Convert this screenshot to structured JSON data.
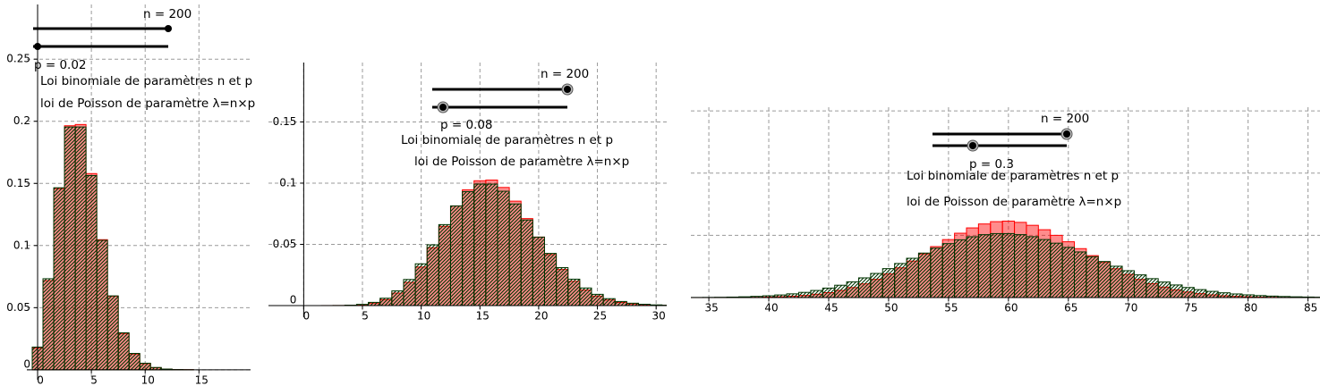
{
  "chart_data": [
    {
      "type": "bar",
      "sliders": [
        {
          "label": "n = 200"
        },
        {
          "label": "p = 0.02"
        }
      ],
      "x": [
        0,
        1,
        2,
        3,
        4,
        5,
        6,
        7,
        8,
        9,
        10,
        11,
        12,
        13,
        14,
        15,
        16,
        17,
        18
      ],
      "series": [
        {
          "name": "Loi binomiale de paramètres n et p",
          "color": "#ff0000",
          "values": [
            0.0176,
            0.0718,
            0.1458,
            0.1964,
            0.1974,
            0.1579,
            0.1047,
            0.0592,
            0.0292,
            0.0127,
            0.005,
            0.0017,
            0.0006,
            0.0002,
            0.0001,
            0,
            0,
            0,
            0
          ]
        },
        {
          "name": "loi de Poisson de paramètre λ=n×p",
          "color": "#003300",
          "values": [
            0.0183,
            0.0733,
            0.1465,
            0.1954,
            0.1954,
            0.1563,
            0.1042,
            0.0595,
            0.0298,
            0.0132,
            0.0053,
            0.0019,
            0.0006,
            0.0002,
            0.0001,
            0,
            0,
            0,
            0
          ]
        }
      ],
      "xlim": [
        -1,
        19.8
      ],
      "ylim": [
        -0.008,
        0.294
      ],
      "xticks": [
        0,
        5,
        10,
        15
      ],
      "yticks": [
        0,
        0.05,
        0.1,
        0.15,
        0.2,
        0.25
      ],
      "ytick_labels": true,
      "grid": true
    },
    {
      "type": "bar",
      "sliders": [
        {
          "label": "n = 200"
        },
        {
          "label": "p = 0.08"
        }
      ],
      "x": [
        0,
        1,
        2,
        3,
        4,
        5,
        6,
        7,
        8,
        9,
        10,
        11,
        12,
        13,
        14,
        15,
        16,
        17,
        18,
        19,
        20,
        21,
        22,
        23,
        24,
        25,
        26,
        27,
        28,
        29,
        30,
        31
      ],
      "series": [
        {
          "name": "Loi binomiale de paramètres n et p",
          "color": "#ff0000",
          "values": [
            0,
            0,
            1e-05,
            5e-05,
            0.00021,
            0.00072,
            0.00202,
            0.00487,
            0.01021,
            0.01895,
            0.03147,
            0.04726,
            0.06473,
            0.0814,
            0.09455,
            0.10195,
            0.1025,
            0.09647,
            0.08529,
            0.07104,
            0.05591,
            0.04167,
            0.02948,
            0.01984,
            0.01272,
            0.00779,
            0.00456,
            0.00256,
            0.00137,
            0.00071,
            0.00035,
            0.00017
          ]
        },
        {
          "name": "loi de Poisson de paramètre λ=n×p",
          "color": "#003300",
          "values": [
            0,
            0,
            2e-05,
            8e-05,
            0.00031,
            0.00098,
            0.00262,
            0.00599,
            0.01199,
            0.02131,
            0.0341,
            0.0496,
            0.06613,
            0.08139,
            0.09302,
            0.09922,
            0.09922,
            0.09338,
            0.083,
            0.0699,
            0.05592,
            0.04261,
            0.03099,
            0.02156,
            0.01437,
            0.0092,
            0.00566,
            0.00335,
            0.00192,
            0.00106,
            0.00056,
            0.00029
          ]
        }
      ],
      "xlim": [
        -3,
        30.9
      ],
      "ylim": [
        -0.0095,
        0.1985
      ],
      "xticks": [
        0,
        5,
        10,
        15,
        20,
        25,
        30
      ],
      "yticks": [
        0,
        0.05,
        0.1,
        0.15
      ],
      "ytick_labels": true,
      "grid": true
    },
    {
      "type": "bar",
      "sliders": [
        {
          "label": "n = 200"
        },
        {
          "label": "p = 0.3"
        }
      ],
      "x": [
        34,
        35,
        36,
        37,
        38,
        39,
        40,
        41,
        42,
        43,
        44,
        45,
        46,
        47,
        48,
        49,
        50,
        51,
        52,
        53,
        54,
        55,
        56,
        57,
        58,
        59,
        60,
        61,
        62,
        63,
        64,
        65,
        66,
        67,
        68,
        69,
        70,
        71,
        72,
        73,
        74,
        75,
        76,
        77,
        78,
        79,
        80,
        81,
        82,
        83,
        84,
        85,
        86
      ],
      "series": [
        {
          "name": "Loi binomiale de paramètres n et p",
          "color": "#ff0000",
          "values": [
            1e-05,
            2e-05,
            4e-05,
            7e-05,
            0.00013,
            0.00024,
            0.00041,
            0.00068,
            0.00111,
            0.00175,
            0.00267,
            0.00397,
            0.00574,
            0.00806,
            0.01101,
            0.01464,
            0.01895,
            0.02389,
            0.02934,
            0.03511,
            0.04096,
            0.0466,
            0.05171,
            0.05599,
            0.05916,
            0.06102,
            0.06146,
            0.06045,
            0.05808,
            0.05453,
            0.05003,
            0.04486,
            0.03933,
            0.03371,
            0.02826,
            0.02317,
            0.01858,
            0.01458,
            0.0112,
            0.00842,
            0.00619,
            0.00446,
            0.00314,
            0.00217,
            0.00147,
            0.00097,
            0.00063,
            0.0004,
            0.00025,
            0.00015,
            9e-05,
            5e-05,
            3e-05
          ]
        },
        {
          "name": "loi de Poisson de paramètre λ=n×p",
          "color": "#003300",
          "values": [
            9e-05,
            0.00015,
            0.00024,
            0.00039,
            0.00062,
            0.00096,
            0.00143,
            0.0021,
            0.003,
            0.00418,
            0.00571,
            0.00761,
            0.00992,
            0.01267,
            0.01584,
            0.01939,
            0.02327,
            0.02738,
            0.03159,
            0.03576,
            0.03973,
            0.04335,
            0.04644,
            0.04889,
            0.05057,
            0.05143,
            0.05143,
            0.05059,
            0.04896,
            0.04663,
            0.04371,
            0.04035,
            0.03668,
            0.03285,
            0.02898,
            0.0252,
            0.0216,
            0.01825,
            0.01521,
            0.0125,
            0.01014,
            0.00811,
            0.0064,
            0.00499,
            0.00384,
            0.00291,
            0.00219,
            0.00162,
            0.00119,
            0.00086,
            0.00061,
            0.00043,
            0.0003
          ]
        }
      ],
      "xlim": [
        33.5,
        86
      ],
      "ylim": [
        -0.0086,
        0.153
      ],
      "xticks": [
        35,
        40,
        45,
        50,
        55,
        60,
        65,
        70,
        75,
        80,
        85
      ],
      "yticks": [
        0,
        0.05,
        0.1,
        0.15
      ],
      "ytick_labels": false,
      "grid": true
    }
  ]
}
